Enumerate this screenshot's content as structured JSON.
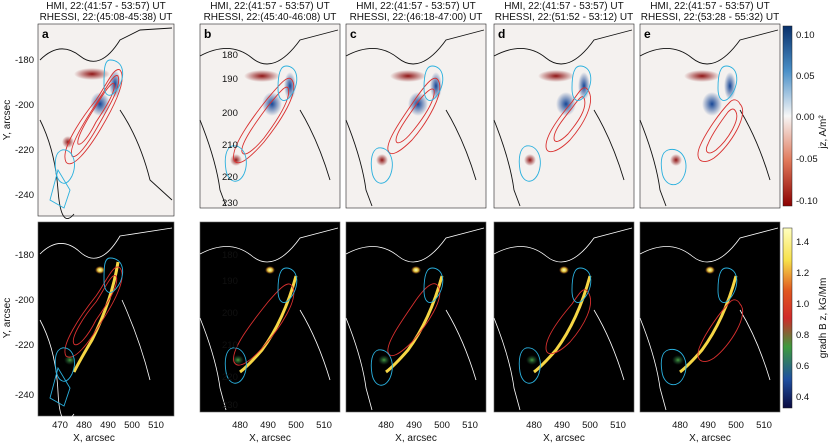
{
  "top_row": {
    "panels": [
      {
        "letter": "a",
        "line1": "HMI, 22:(41:57 - 53:57) UT",
        "line2": "RHESSI, 22:(45:08-45:38) UT"
      },
      {
        "letter": "b",
        "line1": "HMI, 22:(41:57 - 53:57) UT",
        "line2": "RHESSI, 22:(45:40-46:08) UT"
      },
      {
        "letter": "c",
        "line1": "HMI, 22:(41:57 - 53:57) UT",
        "line2": "RHESSI, 22:(46:18-47:00) UT"
      },
      {
        "letter": "d",
        "line1": "HMI, 22:(41:57 - 53:57) UT",
        "line2": "RHESSI, 22:(51:52 - 53:12) UT"
      },
      {
        "letter": "e",
        "line1": "HMI, 22:(41:57 - 53:57) UT",
        "line2": "RHESSI, 22:(53:28 - 55:32) UT"
      }
    ],
    "colorbar_label": "jz, A/m²",
    "colorbar_ticks": [
      "0.10",
      "0.05",
      "0.00",
      "-0.05",
      "-0.10"
    ]
  },
  "bottom_row": {
    "colorbar_label": "gradh B z, kG/Mm",
    "colorbar_ticks": [
      "1.4",
      "1.2",
      "1.0",
      "0.8",
      "0.6",
      "0.4"
    ]
  },
  "axes": {
    "ylabel": "Y, arcsec",
    "xlabel": "X, arcsec",
    "panel_a_yticks": [
      "-180",
      "-200",
      "-220",
      "-240"
    ],
    "panel_b_yticks": [
      "180",
      "190",
      "200",
      "210",
      "220",
      "230"
    ],
    "panel_a_xticks": [
      "470",
      "480",
      "490",
      "500",
      "510"
    ],
    "panel_b_xticks": [
      "480",
      "490",
      "500",
      "510"
    ]
  },
  "colors": {
    "contour_red": "#d9302f",
    "contour_cyan": "#2ab0de",
    "neutral_contour_top": "#000000",
    "neutral_contour_bottom": "#ffffff"
  }
}
